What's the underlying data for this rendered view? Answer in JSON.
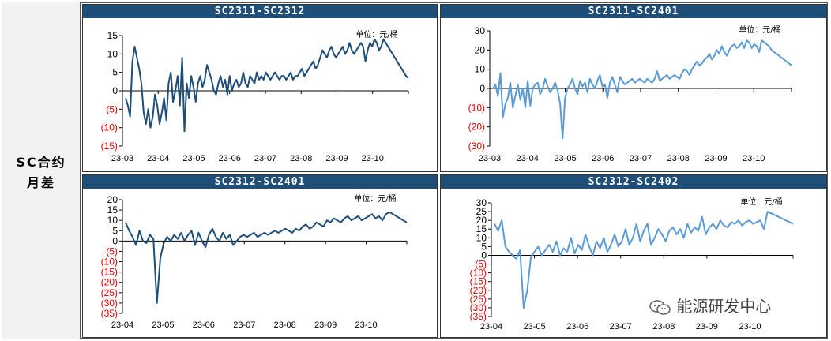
{
  "side_label": "SC合约\n月差",
  "watermark": "能源研发中心",
  "chart_data": [
    {
      "type": "line",
      "title": "SC2311-SC2312",
      "unit_label": "单位：元/桶",
      "ylim": [
        -15,
        15
      ],
      "yticks": [
        15,
        10,
        5,
        0,
        -5,
        -10,
        -15
      ],
      "ytick_labels": [
        "15",
        "10",
        "5",
        "0",
        "(5)",
        "(10)",
        "(15)"
      ],
      "xticks": [
        "23-03",
        "23-04",
        "23-05",
        "23-06",
        "23-07",
        "23-08",
        "23-09",
        "23-10"
      ],
      "line_color": "#1f4e79",
      "series": [
        {
          "values": [
            -2,
            -4,
            -7,
            8,
            12,
            9,
            6,
            2,
            -6,
            -9,
            -5,
            -10,
            -7,
            -1,
            -4,
            -9,
            -6,
            -2,
            -8,
            2,
            5,
            -3,
            0,
            4,
            -4,
            9,
            -11,
            2,
            -2,
            4,
            1,
            -3,
            2,
            4,
            1,
            3,
            7,
            5,
            3,
            0,
            -1,
            2,
            4,
            1,
            3,
            -1,
            4,
            0,
            2,
            3,
            1,
            2,
            5,
            2,
            1,
            4,
            3,
            2,
            5,
            3,
            4,
            3,
            5,
            4,
            3,
            4,
            5,
            4,
            3,
            4,
            4,
            3,
            4,
            5,
            3,
            4,
            4,
            5,
            6,
            4,
            5,
            6,
            7,
            8,
            6,
            7,
            9,
            11,
            10,
            9,
            11,
            12,
            10,
            9,
            10,
            11,
            12,
            10,
            11,
            13,
            11,
            10,
            11,
            12,
            13,
            12,
            8,
            11,
            13,
            12,
            14,
            13,
            11,
            12,
            14,
            13,
            12,
            11,
            10,
            9,
            8,
            7,
            6,
            5,
            4,
            3.5
          ]
        }
      ]
    },
    {
      "type": "line",
      "title": "SC2311-SC2401",
      "unit_label": "单位：元/桶",
      "ylim": [
        -30,
        30
      ],
      "yticks": [
        30,
        20,
        10,
        0,
        -10,
        -20,
        -30
      ],
      "ytick_labels": [
        "30",
        "20",
        "10",
        "0",
        "(10)",
        "(20)",
        "(30)"
      ],
      "xticks": [
        "23-03",
        "23-04",
        "23-05",
        "23-06",
        "23-07",
        "23-08",
        "23-09",
        "23-10"
      ],
      "line_color": "#5b9bd5",
      "series": [
        {
          "values": [
            0,
            2,
            -4,
            8,
            -15,
            -8,
            -5,
            3,
            -10,
            -4,
            2,
            -6,
            0,
            -10,
            4,
            -9,
            0,
            2,
            3,
            -3,
            0,
            5,
            1,
            -2,
            0,
            3,
            -1,
            -8,
            -26,
            -5,
            0,
            2,
            5,
            0,
            -3,
            4,
            1,
            3,
            -2,
            5,
            2,
            0,
            4,
            7,
            1,
            2,
            -5,
            3,
            6,
            2,
            -2,
            6,
            4,
            2,
            3,
            4,
            5,
            3,
            4,
            5,
            4,
            3,
            5,
            4,
            3,
            5,
            9,
            4,
            5,
            6,
            7,
            5,
            6,
            7,
            6,
            5,
            8,
            10,
            9,
            7,
            10,
            12,
            14,
            12,
            13,
            15,
            16,
            18,
            15,
            17,
            20,
            18,
            22,
            19,
            17,
            20,
            22,
            23,
            21,
            22,
            24,
            21,
            25,
            24,
            21,
            23,
            22,
            19,
            25,
            24,
            23,
            22,
            20,
            19,
            18,
            17,
            16,
            15,
            14,
            13,
            12
          ]
        }
      ]
    },
    {
      "type": "line",
      "title": "SC2312-SC2401",
      "unit_label": "单位：元/桶",
      "ylim": [
        -35,
        20
      ],
      "yticks": [
        20,
        15,
        10,
        5,
        0,
        -5,
        -10,
        -15,
        -20,
        -25,
        -30,
        -35
      ],
      "ytick_labels": [
        "20",
        "15",
        "10",
        "5",
        "0",
        "(5)",
        "(10)",
        "(15)",
        "(20)",
        "(25)",
        "(30)",
        "(35)"
      ],
      "xticks": [
        "23-04",
        "23-05",
        "23-06",
        "23-07",
        "23-08",
        "23-09",
        "23-10"
      ],
      "line_color": "#1f4e79",
      "series": [
        {
          "values": [
            9,
            5,
            2,
            -2,
            5,
            0,
            -1,
            3,
            1,
            -30,
            -8,
            -1,
            2,
            0,
            3,
            1,
            4,
            0,
            3,
            5,
            -2,
            4,
            0,
            -3,
            3,
            6,
            2,
            0,
            4,
            1,
            3,
            -2,
            0,
            2,
            3,
            2,
            3,
            4,
            2,
            3,
            4,
            3,
            4,
            5,
            4,
            5,
            6,
            5,
            4,
            6,
            5,
            7,
            8,
            6,
            7,
            9,
            8,
            7,
            10,
            9,
            11,
            10,
            9,
            11,
            12,
            10,
            11,
            12,
            10,
            11,
            12,
            13,
            11,
            12,
            10,
            13,
            14,
            13,
            12,
            11,
            10,
            9
          ]
        }
      ]
    },
    {
      "type": "line",
      "title": "SC2312-SC2402",
      "unit_label": "单位：元/桶",
      "ylim": [
        -35,
        30
      ],
      "yticks": [
        30,
        25,
        20,
        15,
        10,
        5,
        0,
        -5,
        -10,
        -15,
        -20,
        -25,
        -30,
        -35
      ],
      "ytick_labels": [
        "30",
        "25",
        "20",
        "15",
        "10",
        "5",
        "0",
        "(5)",
        "(10)",
        "(15)",
        "(20)",
        "(25)",
        "(30)",
        "(35)"
      ],
      "xticks": [
        "23-04",
        "23-05",
        "23-06",
        "23-07",
        "23-08",
        "23-09",
        "23-10"
      ],
      "line_color": "#5b9bd5",
      "series": [
        {
          "values": [
            18,
            14,
            20,
            5,
            2,
            0,
            -2,
            3,
            -30,
            -20,
            -1,
            2,
            5,
            0,
            3,
            6,
            2,
            8,
            0,
            4,
            2,
            10,
            1,
            6,
            3,
            12,
            5,
            0,
            8,
            4,
            10,
            2,
            6,
            12,
            5,
            8,
            15,
            6,
            10,
            18,
            8,
            14,
            18,
            6,
            10,
            15,
            12,
            8,
            14,
            16,
            12,
            15,
            10,
            18,
            13,
            16,
            14,
            22,
            12,
            16,
            18,
            15,
            20,
            17,
            16,
            19,
            18,
            20,
            17,
            19,
            20,
            18,
            19,
            20,
            15,
            25,
            24,
            23,
            22,
            21,
            20,
            19,
            18
          ]
        }
      ]
    }
  ]
}
